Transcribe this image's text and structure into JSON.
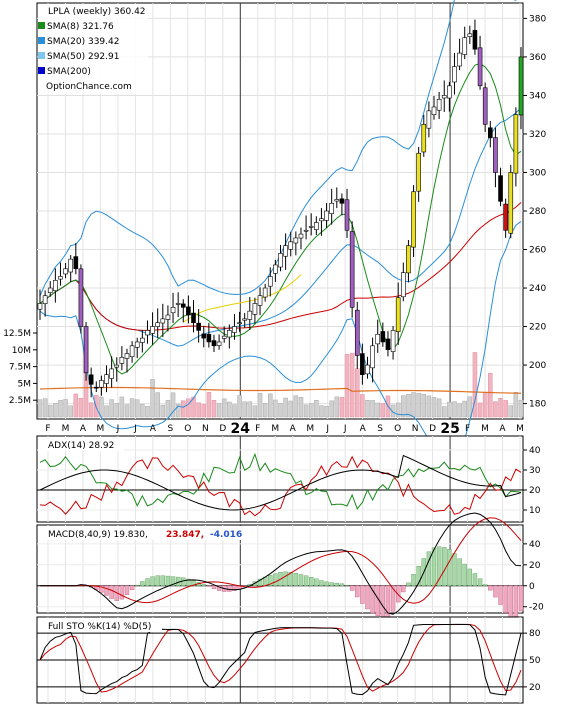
{
  "chart_data": [
    {
      "type": "candlestick",
      "panel": "price",
      "title": "LPLA (weekly) 360.42",
      "watermark": "OptionChance.com",
      "legend": [
        {
          "label": "SMA(8) 321.76",
          "color": "#1a8a1a"
        },
        {
          "label": "SMA(20) 339.42",
          "color": "#2a8fd8"
        },
        {
          "label": "SMA(50) 292.91",
          "color": "#7ec8f0"
        },
        {
          "label": "SMA(200)",
          "color": "#0000cc"
        }
      ],
      "y_ticks": [
        180,
        200,
        220,
        240,
        260,
        280,
        300,
        320,
        340,
        360,
        380
      ],
      "ylim": [
        172,
        388
      ],
      "volume_ticks": [
        "12.5M",
        "10M",
        "7.5M",
        "5M",
        "2.5M"
      ],
      "volume_max": 12.5,
      "x_labels": [
        "F",
        "M",
        "A",
        "M",
        "J",
        "J",
        "A",
        "S",
        "O",
        "N",
        "D",
        "24",
        "F",
        "M",
        "A",
        "M",
        "J",
        "J",
        "A",
        "S",
        "O",
        "N",
        "D",
        "25",
        "F",
        "M",
        "A",
        "M"
      ],
      "close_series": [
        232,
        236,
        240,
        244,
        246,
        250,
        255,
        250,
        220,
        196,
        190,
        188,
        192,
        195,
        198,
        200,
        204,
        206,
        210,
        212,
        214,
        218,
        220,
        222,
        224,
        226,
        230,
        232,
        230,
        226,
        222,
        218,
        214,
        212,
        210,
        212,
        215,
        218,
        220,
        222,
        224,
        228,
        232,
        236,
        240,
        246,
        252,
        258,
        262,
        264,
        266,
        268,
        270,
        272,
        274,
        276,
        280,
        284,
        286,
        284,
        270,
        230,
        205,
        195,
        200,
        210,
        216,
        212,
        208,
        218,
        235,
        248,
        262,
        290,
        310,
        325,
        332,
        334,
        338,
        340,
        345,
        355,
        362,
        370,
        372,
        364,
        345,
        325,
        318,
        300,
        285,
        270,
        300,
        330,
        360
      ],
      "weeks": 95
    },
    {
      "type": "line",
      "panel": "adx",
      "title": "ADX(14) 28.92",
      "y_ticks": [
        10,
        20,
        30,
        40
      ],
      "ylim": [
        4,
        47
      ],
      "series": [
        {
          "name": "ADX(14) 28.92",
          "color": "#000000"
        },
        {
          "name": "",
          "color": "#cc0000"
        },
        {
          "name": "",
          "color": "#1a8a1a"
        }
      ]
    },
    {
      "type": "line",
      "panel": "macd",
      "title": "MACD(8,40,9) 19.830,",
      "signal_value": "23.847,",
      "hist_value": "-4.016",
      "signal_color": "#cc0000",
      "hist_color": "#2255cc",
      "y_ticks": [
        "-20",
        "0",
        "20",
        "40"
      ],
      "ylim": [
        -26,
        58
      ]
    },
    {
      "type": "line",
      "panel": "stoch",
      "title": "Full STO %K(14) %D(5)",
      "y_ticks": [
        "20",
        "50",
        "80"
      ],
      "ylim": [
        2,
        98
      ]
    }
  ]
}
